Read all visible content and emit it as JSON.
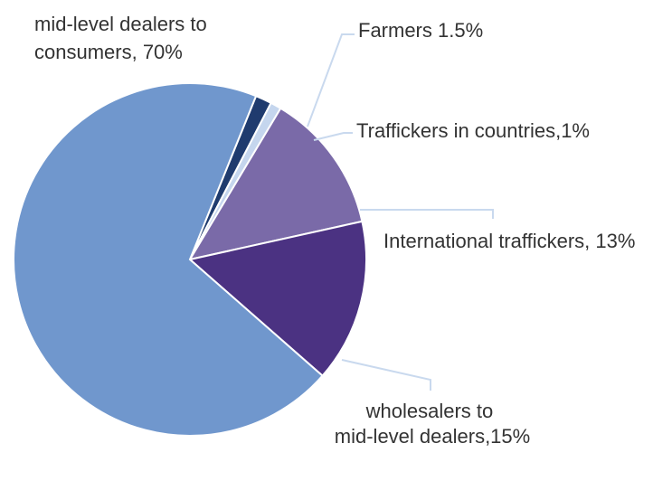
{
  "chart_data": {
    "type": "pie",
    "title": "",
    "slices": [
      {
        "label_lines": [
          "Farmers 1.5%"
        ],
        "value": 1.5,
        "color": "#1f3b6e"
      },
      {
        "label_lines": [
          "Traffickers in countries,1%"
        ],
        "value": 1,
        "color": "#c5d6ee"
      },
      {
        "label_lines": [
          "International traffickers, 13%"
        ],
        "value": 13,
        "color": "#7a6aa8"
      },
      {
        "label_lines": [
          "wholesalers to",
          "mid-level dealers,15%"
        ],
        "value": 15,
        "color": "#4b3282"
      },
      {
        "label_lines": [
          "mid-level dealers to",
          "consumers, 70%"
        ],
        "value": 70,
        "color": "#7097cd"
      }
    ],
    "legend": "none",
    "start_angle_deg": 22,
    "direction": "clockwise"
  }
}
